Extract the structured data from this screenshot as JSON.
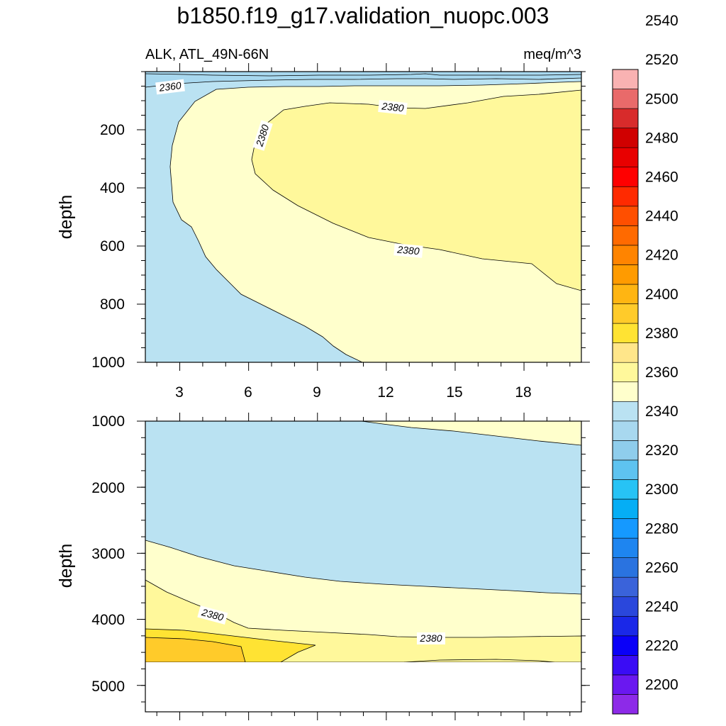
{
  "chart_data": {
    "type": "contour",
    "title": "b1850.f19_g17.validation_nuopc.003",
    "left_subtitle": "ALK, ATL_49N-66N",
    "right_subtitle": "meq/m^3",
    "colors": {
      "c2380": "#FFFFCC",
      "c2390": "#FFF89B",
      "c2400": "#FFE333",
      "c2410": "#FFCB2A",
      "c2360": "#BAE2F2"
    },
    "panels": [
      {
        "name": "upper",
        "ylabel": "depth",
        "ylim": [
          0,
          1000
        ],
        "xlim": [
          1.5,
          20.5
        ],
        "xticks": [
          "3",
          "6",
          "9",
          "12",
          "15",
          "18"
        ],
        "yticks": [
          "200",
          "400",
          "600",
          "800",
          "1000"
        ],
        "contour_labels": [
          "2360",
          "2380",
          "2380",
          "2380"
        ]
      },
      {
        "name": "lower",
        "ylabel": "depth",
        "ylim": [
          1000,
          5400
        ],
        "xlim": [
          1.5,
          20.5
        ],
        "yticks": [
          "1000",
          "2000",
          "3000",
          "4000",
          "5000"
        ],
        "contour_labels": [
          "2380",
          "2380"
        ]
      }
    ],
    "colorbar": {
      "levels": [
        2200,
        2220,
        2240,
        2260,
        2280,
        2300,
        2320,
        2340,
        2360,
        2380,
        2400,
        2420,
        2440,
        2460,
        2480,
        2500,
        2520,
        2540
      ],
      "labels": [
        "2200",
        "2220",
        "2240",
        "2260",
        "2280",
        "2300",
        "2320",
        "2340",
        "2360",
        "2380",
        "2400",
        "2420",
        "2440",
        "2460",
        "2480",
        "2500",
        "2520",
        "2540"
      ],
      "colors": [
        "#8D2AE8",
        "#6A18F0",
        "#3A0CF5",
        "#0A00F8",
        "#1A28E8",
        "#2A47DC",
        "#3A63DA",
        "#2A73E0",
        "#1E85F0",
        "#1599FF",
        "#05AEF5",
        "#27C3F5",
        "#5EC3F0",
        "#8FCDEC",
        "#A8D8EF",
        "#BAE2F2",
        "#FFFFCC",
        "#FFF89B",
        "#FFE68A",
        "#FFE333",
        "#FFCB2A",
        "#FFB512",
        "#FF9B00",
        "#FF8400",
        "#FF6A00",
        "#FF4F00",
        "#FF2A00",
        "#FF0000",
        "#E80000",
        "#D00000",
        "#D82B2B",
        "#E96A6A",
        "#F9B2B2"
      ]
    }
  }
}
